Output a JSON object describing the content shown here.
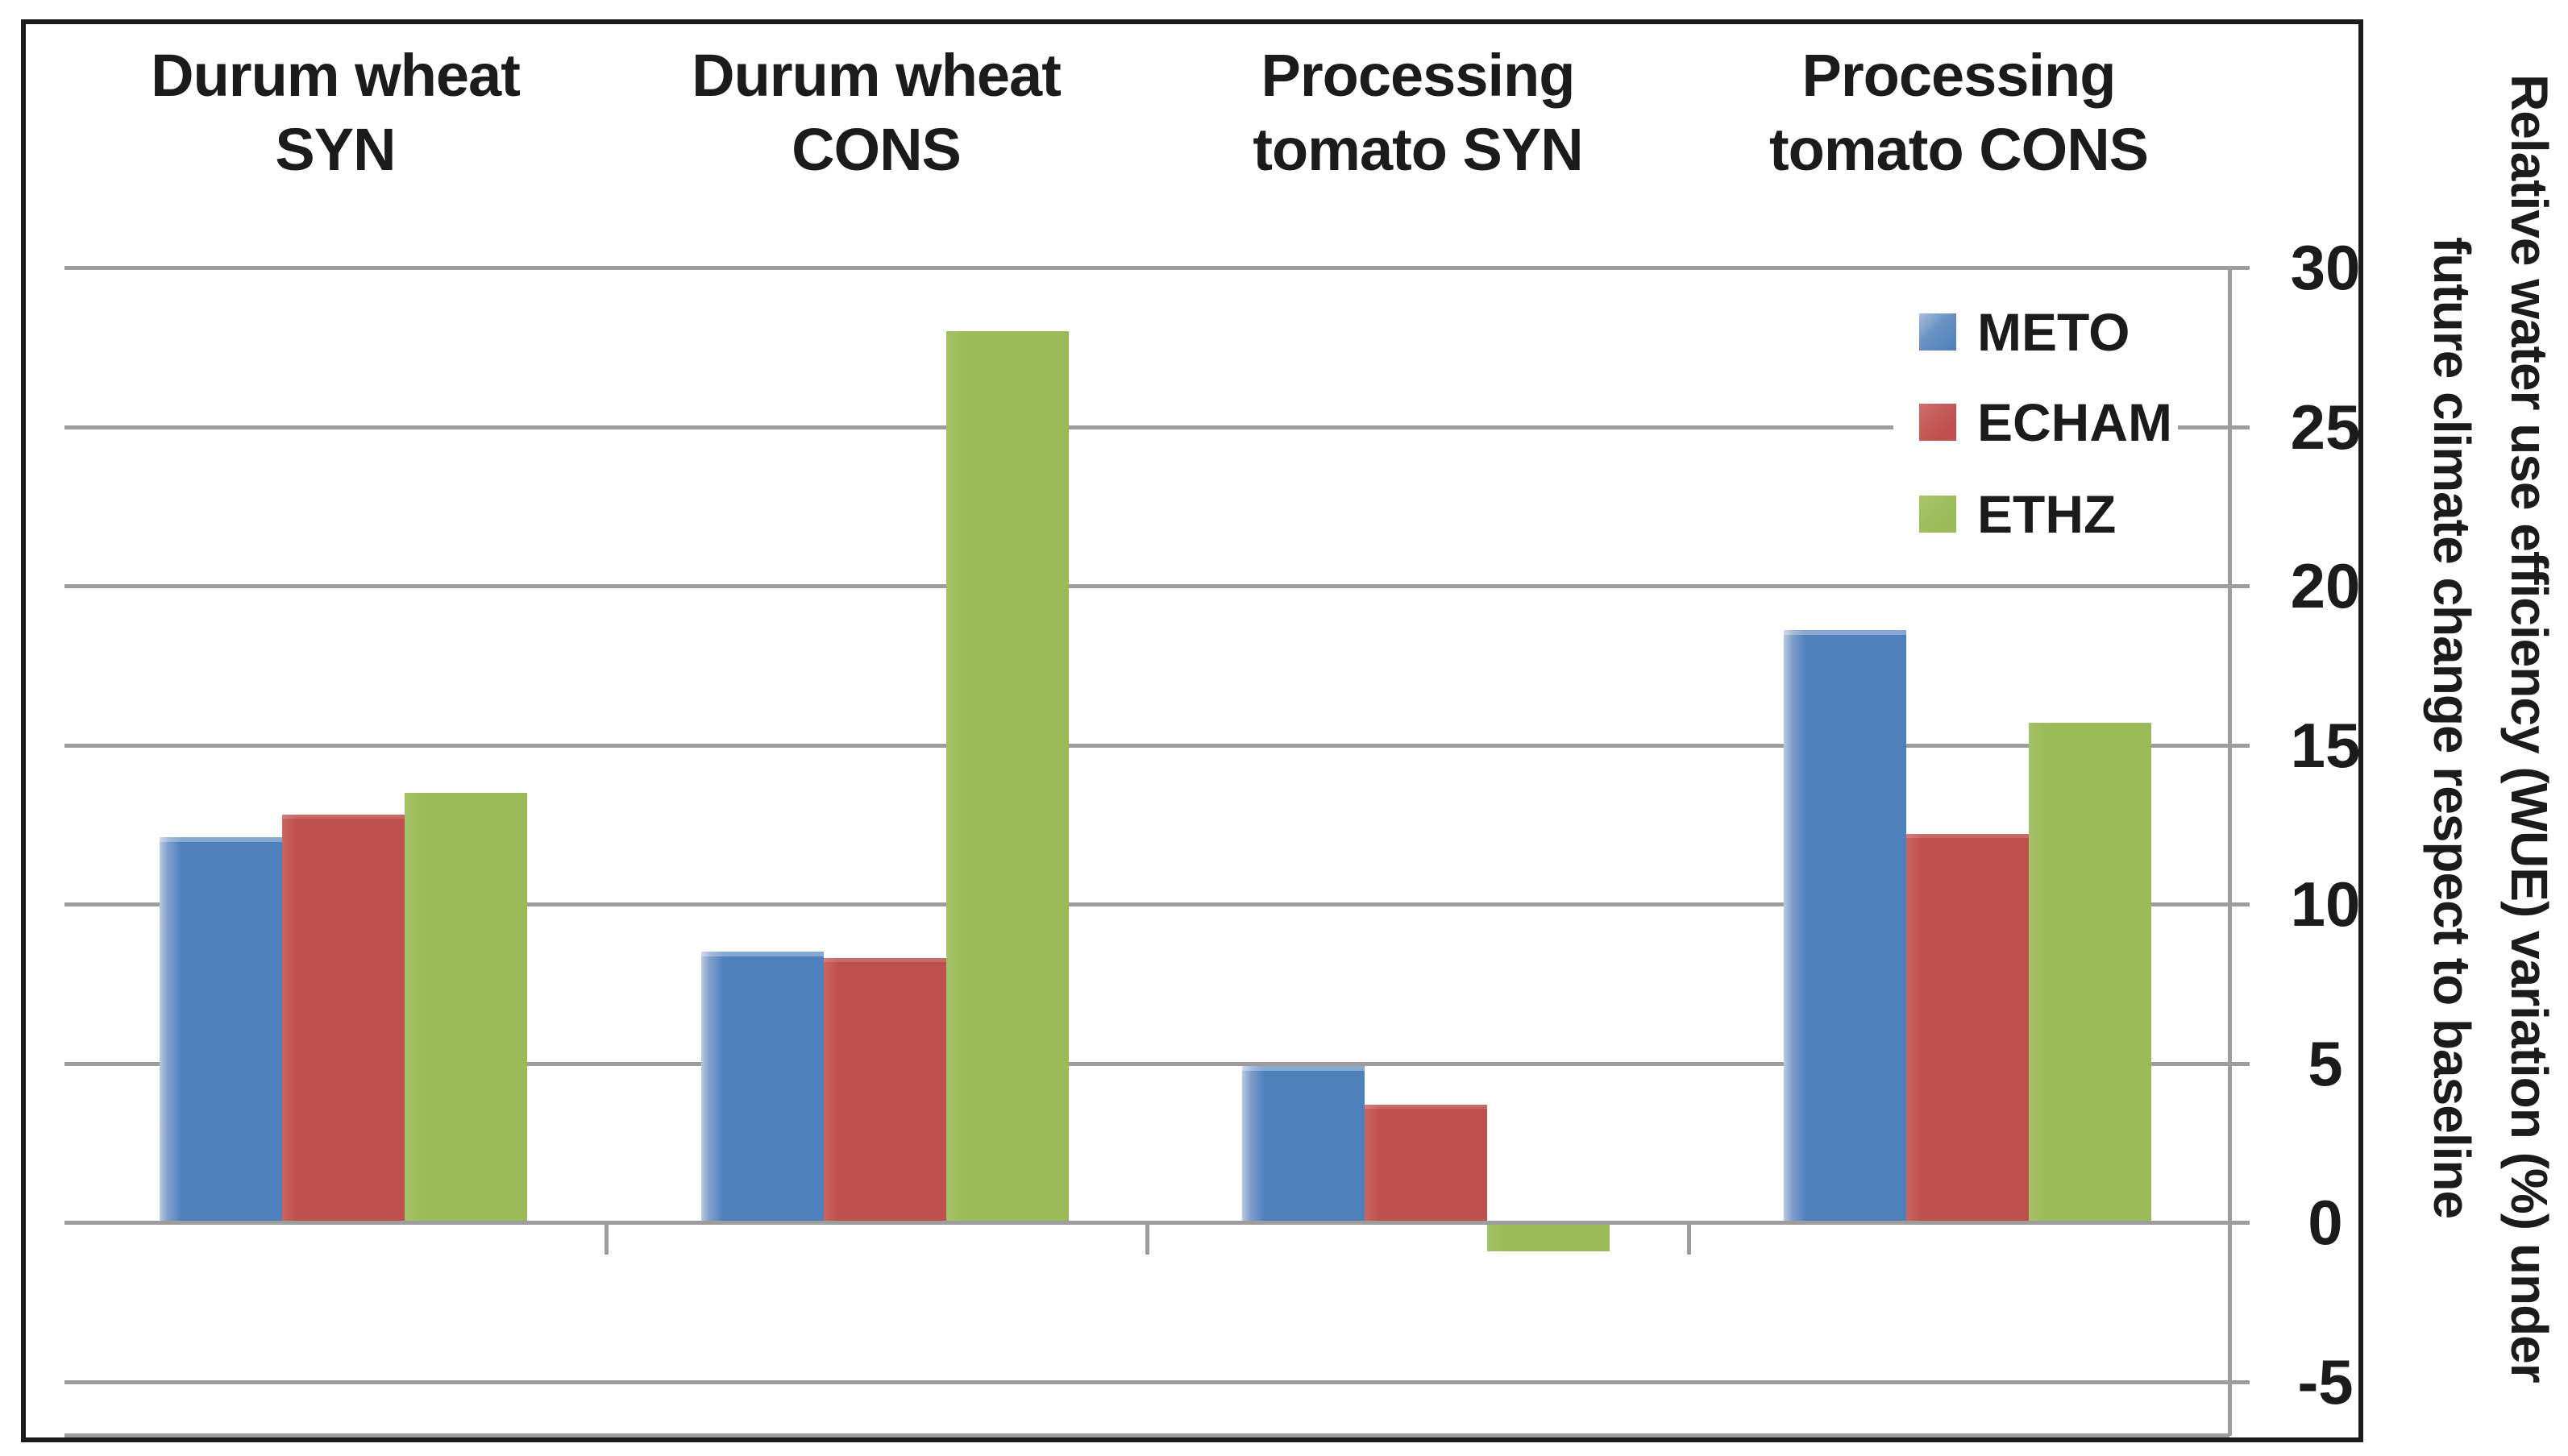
{
  "chart_data": {
    "type": "bar",
    "title": "",
    "categories": [
      "Durum wheat SYN",
      "Durum wheat CONS",
      "Processing tomato SYN",
      "Processing tomato CONS"
    ],
    "category_title_lines": [
      [
        "Durum wheat",
        "SYN"
      ],
      [
        "Durum wheat",
        "CONS"
      ],
      [
        "Processing",
        "tomato SYN"
      ],
      [
        "Processing",
        "tomato CONS"
      ]
    ],
    "series": [
      {
        "name": "METO",
        "color": "#4E81BC",
        "values": [
          12.1,
          8.5,
          4.9,
          18.6
        ]
      },
      {
        "name": "ECHAM",
        "color": "#C0504D",
        "values": [
          12.8,
          8.3,
          3.7,
          12.2
        ]
      },
      {
        "name": "ETHZ",
        "color": "#9BBB59",
        "values": [
          13.5,
          28.0,
          -0.9,
          15.7
        ]
      }
    ],
    "xlabel": "",
    "ylabel": "Relative water use efficiency (WUE) variation (%) under future climate change respect to baseline",
    "ylabel_lines": [
      "Relative water use efficiency (WUE) variation (%) under",
      "future climate change respect to baseline"
    ],
    "yticks": [
      30,
      25,
      20,
      15,
      10,
      5,
      0,
      -5
    ],
    "ylim": [
      -6.6,
      30
    ],
    "grid": true,
    "legend": {
      "entries": [
        "METO",
        "ECHAM",
        "ETHZ"
      ],
      "position": "top-right-inside"
    }
  },
  "colors": {
    "meto": "#4E81BC",
    "echam": "#C0504D",
    "ethz": "#9BBB59",
    "gridline": "#9D9D9D",
    "frame": "#1C1C1C",
    "text": "#1B1B1B",
    "background": "#FFFFFF"
  }
}
